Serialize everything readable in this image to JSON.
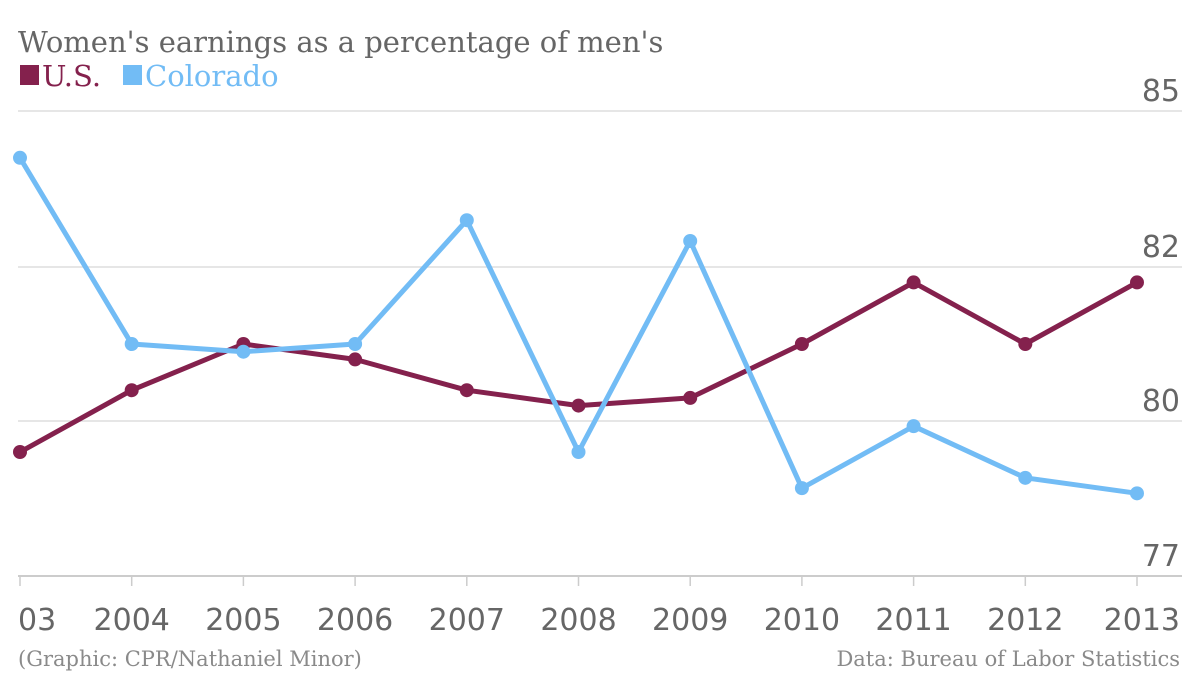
{
  "chart_data": {
    "type": "line",
    "title": "Women's earnings as a percentage of men's",
    "x": [
      "2003",
      "2004",
      "2005",
      "2006",
      "2007",
      "2008",
      "2009",
      "2010",
      "2011",
      "2012",
      "2013"
    ],
    "x_tick_labels": [
      "03",
      "2004",
      "2005",
      "2006",
      "2007",
      "2008",
      "2009",
      "2010",
      "2011",
      "2012",
      "2013"
    ],
    "series": [
      {
        "name": "U.S.",
        "color": "#84214d",
        "values": [
          79.4,
          80.4,
          81.0,
          80.8,
          80.4,
          80.2,
          80.3,
          81.0,
          81.8,
          81.0,
          81.8
        ]
      },
      {
        "name": "Colorado",
        "color": "#72bcf5",
        "values": [
          84.1,
          81.0,
          80.9,
          81.0,
          82.9,
          79.4,
          82.5,
          78.7,
          79.9,
          78.9,
          78.6
        ]
      }
    ],
    "y_ticks": [
      77,
      80,
      82,
      85
    ],
    "ylabel": "",
    "xlabel": "",
    "grid": true,
    "legend_position": "top-left",
    "source_left": "(Graphic: CPR/Nathaniel Minor)",
    "source_right": "Data: Bureau of Labor Statistics",
    "colors": {
      "grid": "#dddddd",
      "axis": "#cccccc",
      "text": "#666666",
      "footer": "#8a8a8a"
    }
  }
}
